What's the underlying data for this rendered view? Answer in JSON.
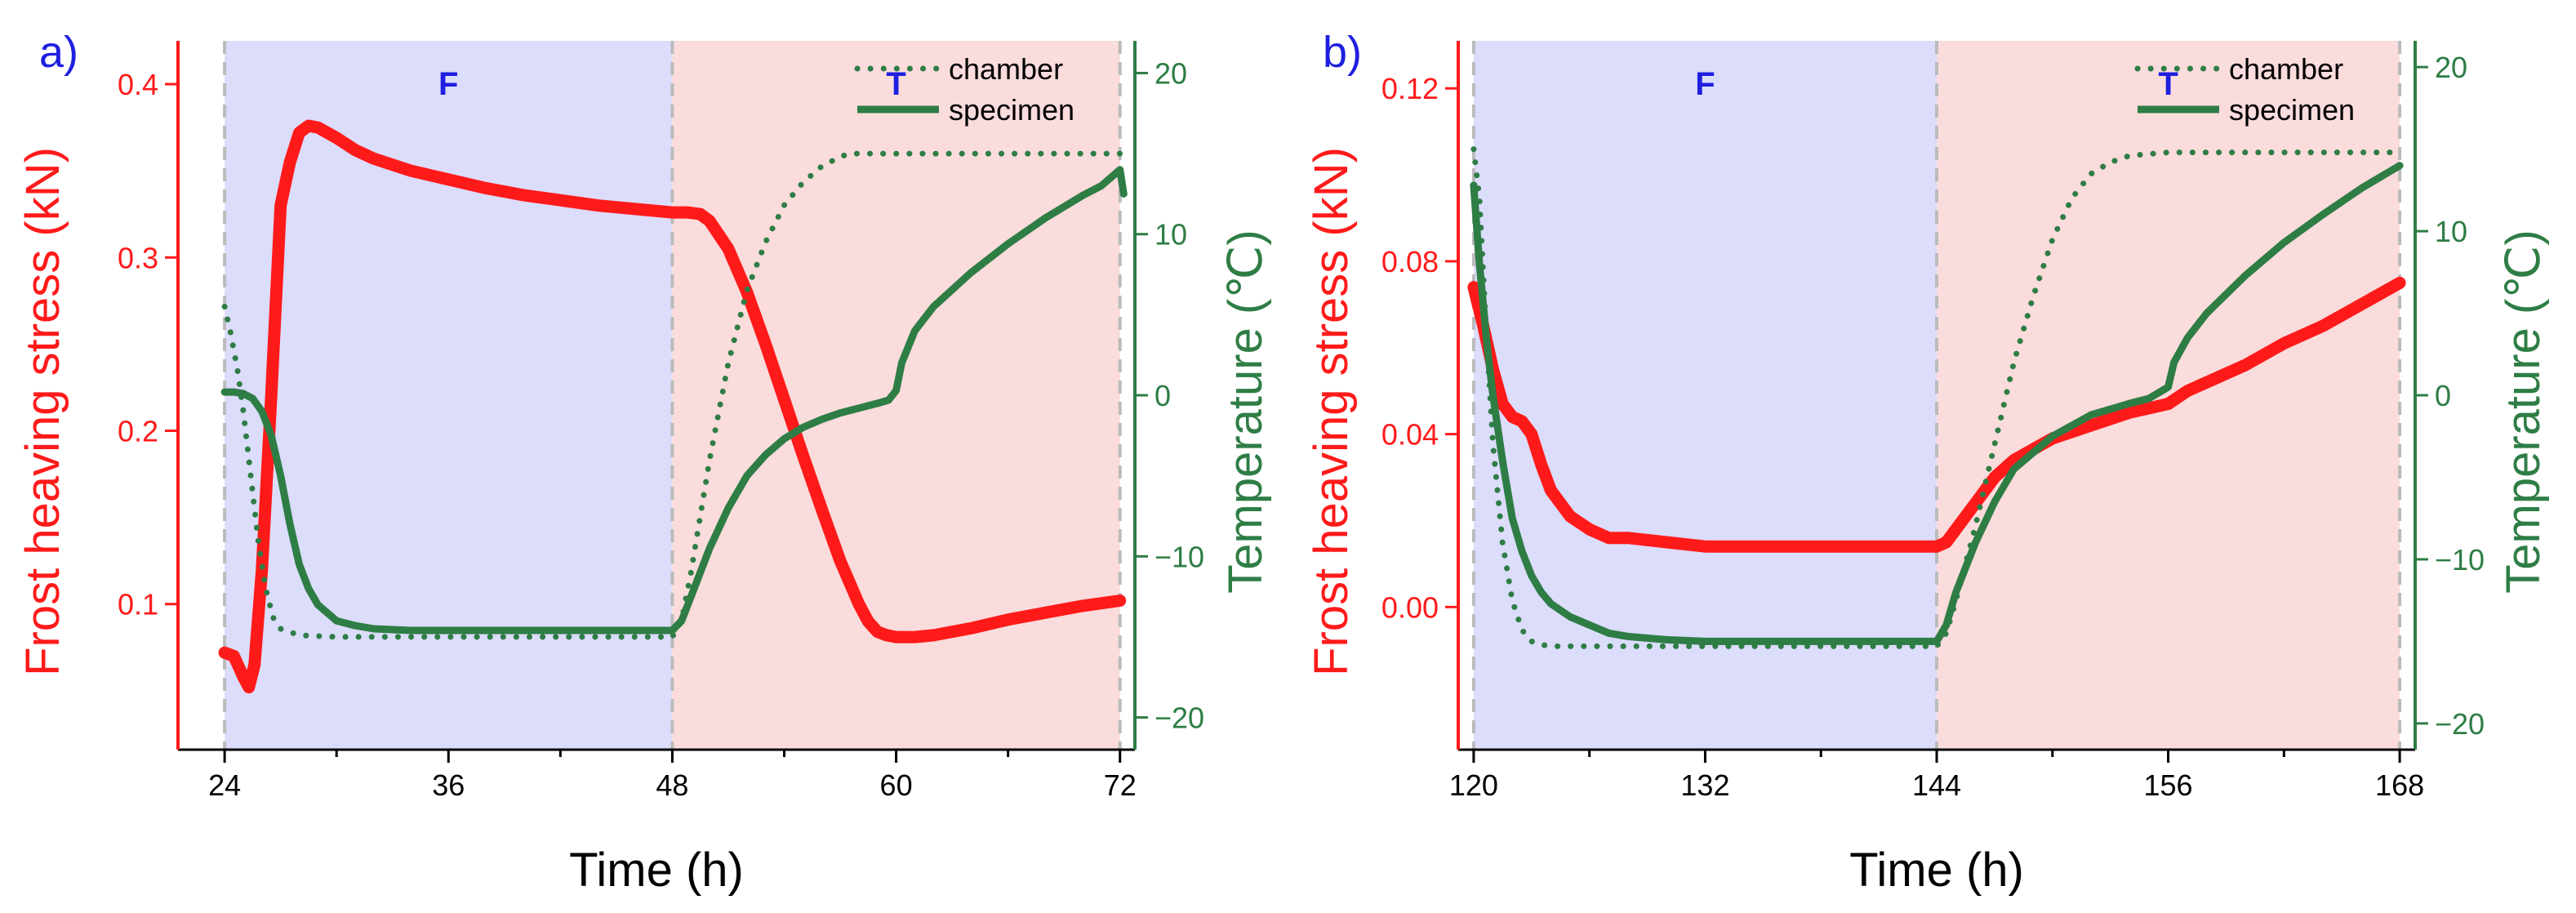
{
  "figure": {
    "description_free": true
  },
  "colors": {
    "stress": "#ff1a1a",
    "temp": "#2e7d45",
    "freeze_band": "#dcdcfb",
    "thaw_band": "#fadcdc",
    "phase_label": "#1f1fe0",
    "panel_label": "#1f1fe0",
    "axis": "#000000",
    "divider": "#bbbbbb"
  },
  "chart_data": [
    {
      "type": "line",
      "panel_label": "a)",
      "xlabel": "Time (h)",
      "ylabel_left": "Frost heaving stress (kN)",
      "ylabel_right": "Temperature (℃)",
      "xlim": [
        21.5,
        72.8
      ],
      "ylim_left": [
        0.016,
        0.425
      ],
      "ylim_right": [
        -22.0,
        22.0
      ],
      "xticks": [
        24,
        36,
        48,
        60,
        72
      ],
      "xtick_labels": [
        "24",
        "36",
        "48",
        "60",
        "72"
      ],
      "yticks_left": [
        0.1,
        0.2,
        0.3,
        0.4
      ],
      "ytick_labels_left": [
        "0.1",
        "0.2",
        "0.3",
        "0.4"
      ],
      "yticks_right": [
        -20,
        -10,
        0,
        10,
        20
      ],
      "ytick_labels_right": [
        "−20",
        "−10",
        "0",
        "10",
        "20"
      ],
      "phases": [
        {
          "label": "F",
          "start": 24,
          "end": 48,
          "kind": "freeze"
        },
        {
          "label": "T",
          "start": 48,
          "end": 72,
          "kind": "thaw"
        }
      ],
      "legend": {
        "position": "top-right",
        "entries": [
          "chamber",
          "specimen"
        ]
      },
      "series": [
        {
          "name": "Frost heaving stress",
          "axis": "left",
          "style": "solid-thick",
          "x": [
            24,
            24.5,
            25,
            25.3,
            25.6,
            26,
            26.5,
            27,
            27.5,
            28,
            28.5,
            29,
            30,
            31,
            32,
            34,
            36,
            38,
            40,
            42,
            44,
            46,
            48,
            48.8,
            49.5,
            50,
            51,
            52,
            53,
            54,
            55,
            56,
            57,
            58,
            58.5,
            59,
            59.5,
            60,
            61,
            62,
            64,
            66,
            68,
            70,
            72
          ],
          "y": [
            0.072,
            0.07,
            0.058,
            0.052,
            0.065,
            0.12,
            0.22,
            0.33,
            0.355,
            0.372,
            0.376,
            0.375,
            0.369,
            0.362,
            0.357,
            0.35,
            0.345,
            0.34,
            0.336,
            0.333,
            0.33,
            0.328,
            0.326,
            0.326,
            0.325,
            0.321,
            0.305,
            0.28,
            0.25,
            0.218,
            0.186,
            0.155,
            0.125,
            0.1,
            0.09,
            0.084,
            0.082,
            0.081,
            0.081,
            0.082,
            0.086,
            0.091,
            0.095,
            0.099,
            0.102
          ]
        },
        {
          "name": "chamber",
          "axis": "right",
          "style": "dotted",
          "x": [
            24,
            24.3,
            24.7,
            25,
            25.4,
            25.8,
            26.2,
            26.6,
            27,
            28,
            30,
            32,
            36,
            40,
            44,
            48,
            48.5,
            49,
            50,
            51,
            52,
            53,
            54,
            55,
            56,
            57,
            57.5,
            58,
            60,
            64,
            68,
            72
          ],
          "y": [
            5.5,
            4,
            1.5,
            -1,
            -5,
            -9,
            -12,
            -13.8,
            -14.5,
            -14.9,
            -15,
            -15,
            -15,
            -15,
            -15,
            -15,
            -14,
            -11,
            -4,
            2,
            6.5,
            9.5,
            11.8,
            13.2,
            14.2,
            14.8,
            15,
            15,
            15,
            15,
            15,
            15
          ]
        },
        {
          "name": "specimen",
          "axis": "right",
          "style": "solid",
          "x": [
            24,
            24.5,
            25,
            25.5,
            26,
            26.5,
            27,
            27.5,
            28,
            28.5,
            29,
            30,
            31,
            32,
            34,
            36,
            40,
            44,
            48,
            48.5,
            49,
            49.5,
            50,
            51,
            52,
            53,
            54,
            55,
            56,
            57,
            58,
            59,
            59.6,
            60,
            60.3,
            61,
            62,
            64,
            66,
            68,
            70,
            71,
            72,
            72.2
          ],
          "y": [
            0.2,
            0.2,
            0.1,
            -0.2,
            -1,
            -2.5,
            -5,
            -8,
            -10.5,
            -12,
            -13,
            -14,
            -14.3,
            -14.5,
            -14.6,
            -14.6,
            -14.6,
            -14.6,
            -14.6,
            -14,
            -12.5,
            -11,
            -9.5,
            -7,
            -5,
            -3.7,
            -2.7,
            -2,
            -1.5,
            -1.1,
            -0.8,
            -0.5,
            -0.3,
            0.3,
            2,
            4,
            5.5,
            7.6,
            9.4,
            11,
            12.4,
            13,
            14,
            12.5
          ]
        }
      ]
    },
    {
      "type": "line",
      "panel_label": "b)",
      "xlabel": "Time (h)",
      "ylabel_left": "Frost heaving stress (kN)",
      "ylabel_right": "Temperature (℃)",
      "xlim": [
        119.2,
        168.8
      ],
      "ylim_left": [
        -0.033,
        0.131
      ],
      "ylim_right": [
        -21.6,
        21.6
      ],
      "xticks": [
        120,
        132,
        144,
        156,
        168
      ],
      "xtick_labels": [
        "120",
        "132",
        "144",
        "156",
        "168"
      ],
      "yticks_left": [
        0.0,
        0.04,
        0.08,
        0.12
      ],
      "ytick_labels_left": [
        "0.00",
        "0.04",
        "0.08",
        "0.12"
      ],
      "yticks_right": [
        -20,
        -10,
        0,
        10,
        20
      ],
      "ytick_labels_right": [
        "−20",
        "−10",
        "0",
        "10",
        "20"
      ],
      "phases": [
        {
          "label": "F",
          "start": 120,
          "end": 144,
          "kind": "freeze"
        },
        {
          "label": "T",
          "start": 144,
          "end": 168,
          "kind": "thaw"
        }
      ],
      "legend": {
        "position": "top-right",
        "entries": [
          "chamber",
          "specimen"
        ]
      },
      "series": [
        {
          "name": "Frost heaving stress",
          "axis": "left",
          "style": "solid-thick",
          "x": [
            120,
            120.5,
            121,
            121.5,
            122,
            122.5,
            123,
            123.5,
            124,
            124.5,
            125,
            126,
            127,
            128,
            130,
            132,
            136,
            140,
            144,
            144.5,
            145,
            146,
            147,
            148,
            150,
            152,
            154,
            155,
            156,
            157,
            158,
            160,
            162,
            164,
            166,
            168
          ],
          "y": [
            0.074,
            0.065,
            0.055,
            0.047,
            0.044,
            0.043,
            0.04,
            0.033,
            0.027,
            0.024,
            0.021,
            0.018,
            0.016,
            0.016,
            0.015,
            0.014,
            0.014,
            0.014,
            0.014,
            0.015,
            0.018,
            0.024,
            0.03,
            0.034,
            0.039,
            0.042,
            0.045,
            0.046,
            0.047,
            0.05,
            0.052,
            0.056,
            0.061,
            0.065,
            0.07,
            0.075
          ]
        },
        {
          "name": "chamber",
          "axis": "right",
          "style": "dotted",
          "x": [
            120,
            120.3,
            120.6,
            121,
            121.5,
            122,
            122.5,
            123,
            123.5,
            124,
            125,
            126,
            128,
            132,
            136,
            140,
            144,
            144.5,
            145,
            146,
            147,
            148,
            149,
            150,
            151,
            152,
            153,
            154,
            156,
            160,
            164,
            168
          ],
          "y": [
            15,
            12,
            5,
            -3,
            -9,
            -12.5,
            -14.3,
            -15,
            -15.2,
            -15.3,
            -15.3,
            -15.3,
            -15.3,
            -15.3,
            -15.3,
            -15.3,
            -15.3,
            -14.5,
            -12.5,
            -8,
            -3,
            2,
            6,
            9.5,
            12,
            13.5,
            14.2,
            14.6,
            14.8,
            14.8,
            14.8,
            14.8
          ]
        },
        {
          "name": "specimen",
          "axis": "right",
          "style": "solid",
          "x": [
            120,
            120.3,
            120.7,
            121,
            121.5,
            122,
            122.5,
            123,
            123.5,
            124,
            125,
            126,
            127,
            128,
            130,
            132,
            136,
            140,
            144,
            144.5,
            145,
            146,
            147,
            148,
            150,
            152,
            154,
            155,
            156,
            156.3,
            157,
            158,
            160,
            162,
            164,
            166,
            168
          ],
          "y": [
            12.8,
            8,
            3,
            0,
            -4,
            -7.5,
            -9.5,
            -11,
            -12,
            -12.7,
            -13.5,
            -14,
            -14.5,
            -14.7,
            -14.9,
            -15,
            -15,
            -15,
            -15,
            -14,
            -12,
            -9,
            -6.5,
            -4.5,
            -2.5,
            -1.2,
            -0.5,
            -0.2,
            0.5,
            2,
            3.5,
            5,
            7.3,
            9.3,
            11,
            12.6,
            14
          ]
        }
      ]
    }
  ]
}
